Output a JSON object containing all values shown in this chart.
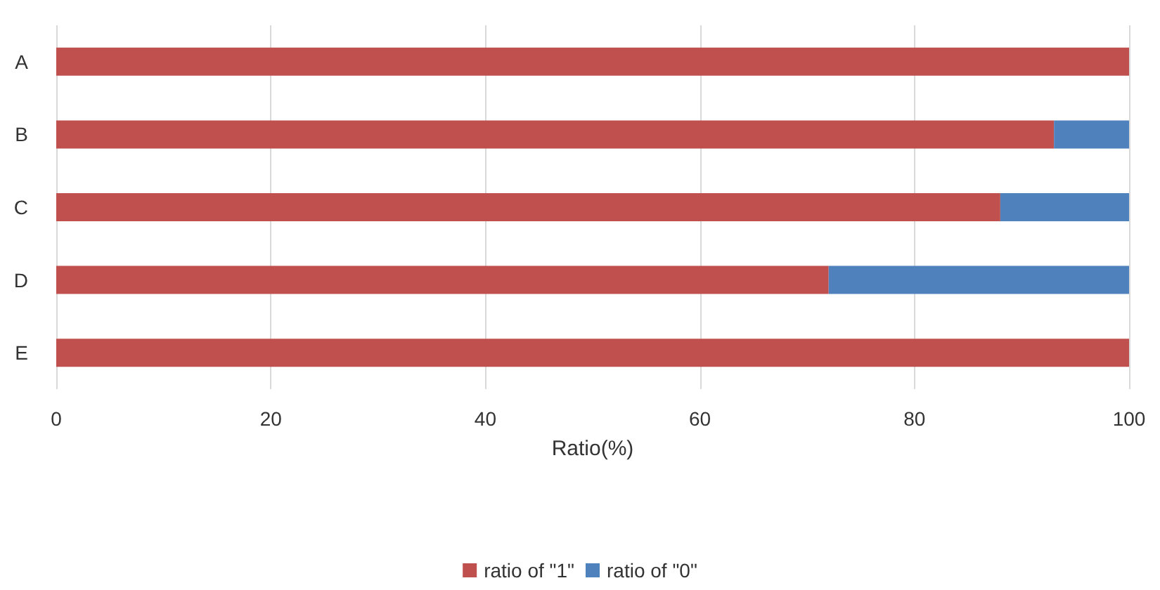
{
  "chart_data": {
    "type": "bar",
    "orientation": "horizontal",
    "stacked": true,
    "categories": [
      "A",
      "B",
      "C",
      "D",
      "E"
    ],
    "series": [
      {
        "name": "ratio of \"1\"",
        "color": "#c0504d",
        "values": [
          100,
          93,
          88,
          72,
          100
        ]
      },
      {
        "name": "ratio of \"0\"",
        "color": "#4f81bd",
        "values": [
          0,
          7,
          12,
          28,
          0
        ]
      }
    ],
    "xlabel": "Ratio(%)",
    "xlim": [
      0,
      100
    ],
    "xticks": [
      0,
      20,
      40,
      60,
      80,
      100
    ],
    "grid": "x",
    "legend": "bottom"
  }
}
